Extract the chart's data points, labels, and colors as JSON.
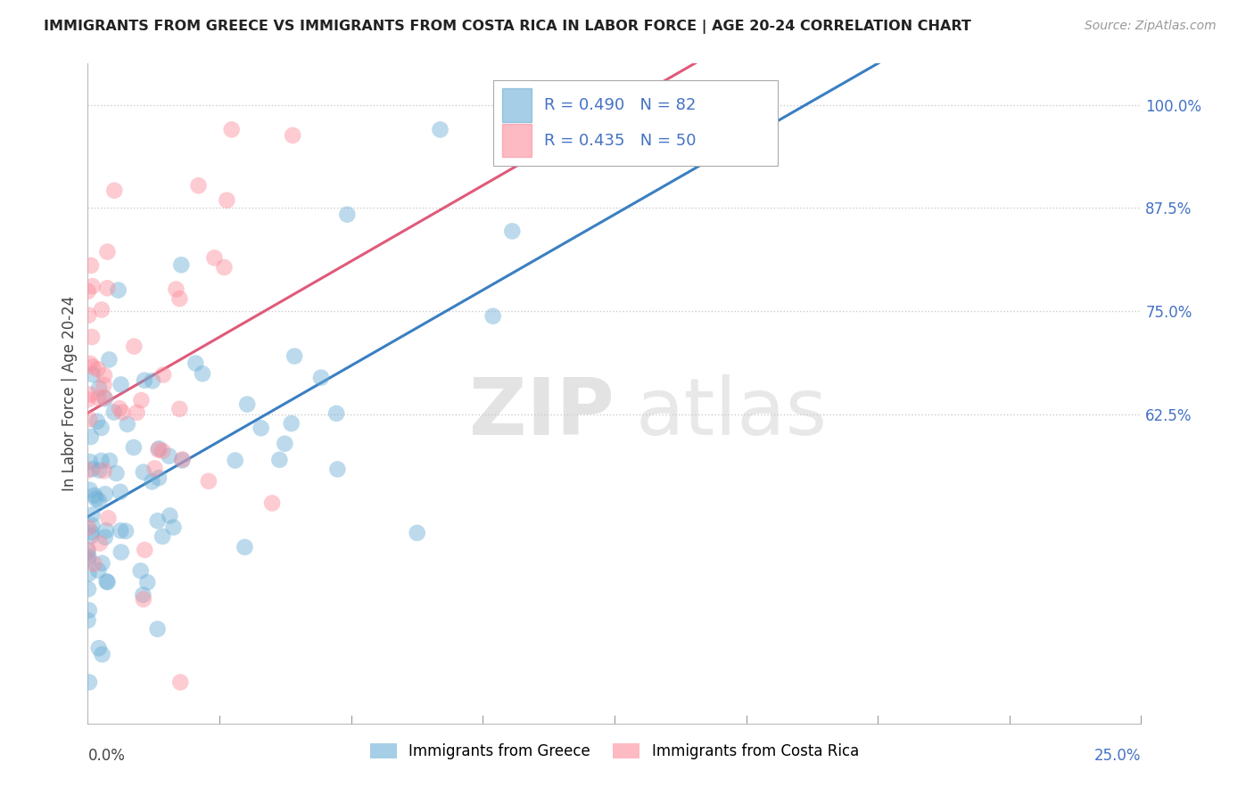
{
  "title": "IMMIGRANTS FROM GREECE VS IMMIGRANTS FROM COSTA RICA IN LABOR FORCE | AGE 20-24 CORRELATION CHART",
  "source": "Source: ZipAtlas.com",
  "ylabel": "In Labor Force | Age 20-24",
  "xlim": [
    0.0,
    0.25
  ],
  "ylim": [
    0.25,
    1.05
  ],
  "xtick_left_label": "0.0%",
  "xtick_right_label": "25.0%",
  "right_ytick_vals": [
    0.625,
    0.75,
    0.875,
    1.0
  ],
  "right_ytick_labels": [
    "62.5%",
    "75.0%",
    "87.5%",
    "100.0%"
  ],
  "bottom_ytick_label": "25.0%",
  "grid_ytick_vals": [
    0.625,
    0.75,
    0.875,
    1.0
  ],
  "legend_labels": [
    "Immigrants from Greece",
    "Immigrants from Costa Rica"
  ],
  "greece_color": "#6baed6",
  "costa_rica_color": "#fc8d9c",
  "greece_R": 0.49,
  "greece_N": 82,
  "costa_rica_R": 0.435,
  "costa_rica_N": 50,
  "greece_line_color": "#3a7fc1",
  "costa_rica_line_color": "#e05a7a",
  "watermark_zip": "ZIP",
  "watermark_atlas": "atlas",
  "background_color": "#ffffff",
  "grid_color": "#cccccc",
  "title_color": "#222222",
  "source_color": "#999999",
  "ylabel_color": "#444444",
  "right_ytick_color": "#4472c4",
  "bottom_label_color": "#444444",
  "legend_text_color": "#222222"
}
